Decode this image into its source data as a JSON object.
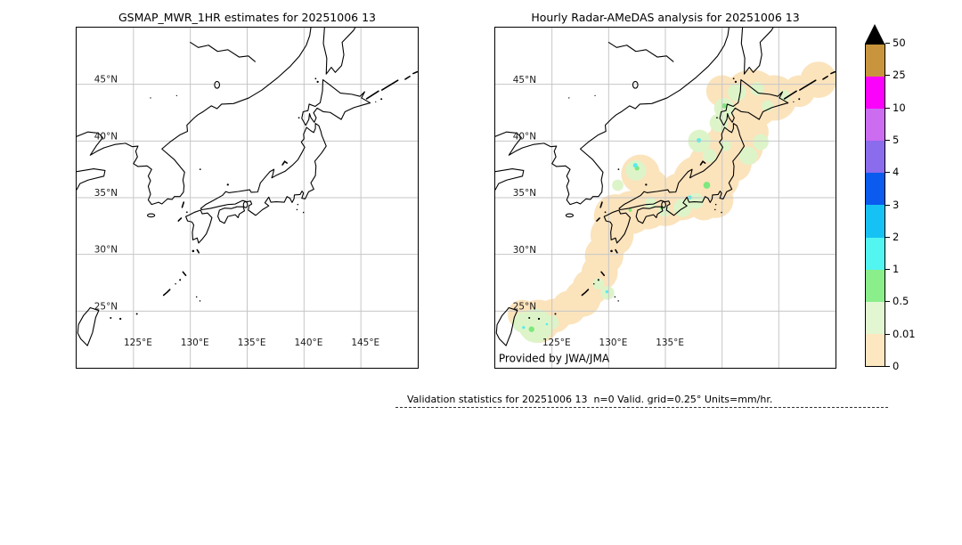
{
  "panels": {
    "left": {
      "title": "GSMAP_MWR_1HR estimates for 20251006 13"
    },
    "right": {
      "title": "Hourly Radar-AMeDAS analysis for 20251006 13",
      "credit": "Provided by JWA/JMA"
    }
  },
  "axis": {
    "lat_labels": [
      "45°N",
      "40°N",
      "35°N",
      "30°N",
      "25°N"
    ],
    "lon_labels": [
      "125°E",
      "130°E",
      "135°E",
      "140°E",
      "145°E"
    ]
  },
  "colorbar": {
    "tick_labels_top_to_bottom": [
      "50",
      "25",
      "10",
      "5",
      "4",
      "3",
      "2",
      "1",
      "0.5",
      "0.01",
      "0"
    ],
    "segment_colors_top_to_bottom": [
      "#c9953c",
      "#fb02fa",
      "#cb6cf1",
      "#8a6cec",
      "#0a5bee",
      "#16c2f3",
      "#52f5f0",
      "#8aee8a",
      "#e3f6d2",
      "#fde7c1"
    ],
    "over_color": "#000000",
    "units": "mm/hr"
  },
  "footer": {
    "validation_text": "Validation statistics for 20251006 13  n=0 Valid. grid=0.25° Units=mm/hr."
  },
  "chart_data": {
    "type": "heatmap",
    "title": "GSMaP_MWR vs Radar-AMeDAS hourly precipitation validation maps for 20251006 13",
    "datetime_label": "20251006 13",
    "panels": [
      {
        "title": "GSMAP_MWR_1HR estimates for 20251006 13",
        "lon_range_deg_e": [
          120,
          150
        ],
        "lat_range_deg_n": [
          20,
          50
        ],
        "gridline_lons_deg_e": [
          125,
          130,
          135,
          140,
          145
        ],
        "gridline_lats_deg_n": [
          25,
          30,
          35,
          40,
          45
        ],
        "shown_lon_tick_labels": [
          "125°E",
          "130°E",
          "135°E",
          "140°E",
          "145°E"
        ],
        "shown_lat_tick_labels": [
          "45°N",
          "40°N",
          "35°N",
          "30°N",
          "25°N"
        ],
        "precipitation_field": "empty - no GSMaP MWR estimates plotted (all white, coastlines only)"
      },
      {
        "title": "Hourly Radar-AMeDAS analysis for 20251006 13",
        "lon_range_deg_e": [
          120,
          150
        ],
        "lat_range_deg_n": [
          20,
          50
        ],
        "gridline_lons_deg_e": [
          125,
          130,
          135,
          140,
          145
        ],
        "gridline_lats_deg_n": [
          25,
          30,
          35,
          40,
          45
        ],
        "shown_lon_tick_labels": [
          "125°E",
          "130°E",
          "135°E"
        ],
        "shown_lat_tick_labels": [
          "45°N",
          "40°N",
          "35°N",
          "30°N",
          "25°N"
        ],
        "credit": "Provided by JWA/JMA",
        "precipitation_field": "radar coverage band following the Japanese archipelago from Hokkaido through Honshu, Kyushu and the Ryukyu islands to near Taiwan; mostly 0-0.01 mm/hr (peach), scattered patches of 0.01-0.5 mm/hr (pale green), a few 0.5-1 mm/hr cells (green) and isolated 1-2 mm/hr spots (cyan) near (132.3E,37.9N), (138E,40.1N), (137.1E,35.0N), (129.8E,26.7N) and the Yaeyama area (122-125E, 23-24N)"
      }
    ],
    "colorbar": {
      "units": "mm/hr",
      "bin_boundaries": [
        0,
        0.01,
        0.5,
        1,
        2,
        3,
        4,
        5,
        10,
        25,
        50
      ],
      "bin_colors_low_to_high": [
        "#fde7c1",
        "#e3f6d2",
        "#8aee8a",
        "#52f5f0",
        "#16c2f3",
        "#0a5bee",
        "#8a6cec",
        "#cb6cf1",
        "#fb02fa",
        "#c9953c"
      ],
      "over_50_color": "#000000",
      "orientation": "vertical, right of panels, black over-range arrow on top"
    },
    "footer_stats": {
      "text": "Validation statistics for 20251006 13  n=0 Valid. grid=0.25° Units=mm/hr.",
      "n_valid": 0,
      "grid_deg": 0.25,
      "units": "mm/hr"
    }
  }
}
